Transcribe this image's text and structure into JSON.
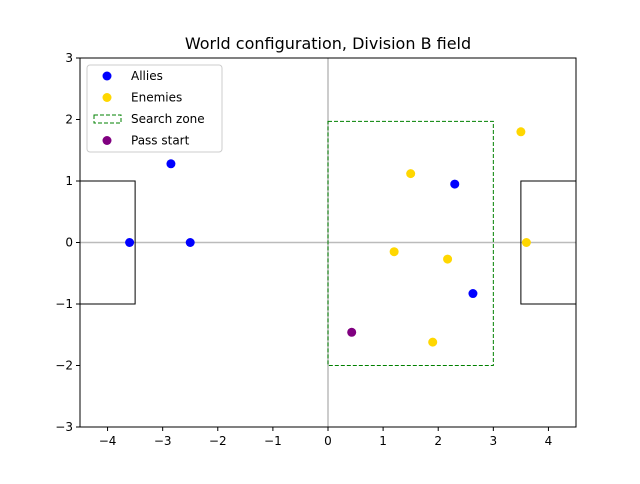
{
  "chart_data": {
    "type": "scatter",
    "title": "World configuration, Division B field",
    "xlabel": "",
    "ylabel": "",
    "xlim": [
      -4.5,
      4.5
    ],
    "ylim": [
      -3,
      3
    ],
    "xticks": [
      -4,
      -3,
      -2,
      -1,
      0,
      1,
      2,
      3,
      4
    ],
    "yticks": [
      -3,
      -2,
      -1,
      0,
      1,
      2,
      3
    ],
    "grid": false,
    "legend_position": "top-left",
    "series": [
      {
        "name": "Allies",
        "color": "#0000ff",
        "points": [
          {
            "x": -3.6,
            "y": 0.0
          },
          {
            "x": -2.5,
            "y": 0.0
          },
          {
            "x": -2.85,
            "y": 1.28
          },
          {
            "x": 2.3,
            "y": 0.95
          },
          {
            "x": 2.63,
            "y": -0.83
          }
        ]
      },
      {
        "name": "Enemies",
        "color": "#ffd700",
        "points": [
          {
            "x": 3.6,
            "y": 0.0
          },
          {
            "x": 3.5,
            "y": 1.8
          },
          {
            "x": 1.5,
            "y": 1.12
          },
          {
            "x": 1.2,
            "y": -0.15
          },
          {
            "x": 2.17,
            "y": -0.27
          },
          {
            "x": 1.9,
            "y": -1.62
          }
        ]
      },
      {
        "name": "Pass start",
        "color": "#800080",
        "points": [
          {
            "x": 0.43,
            "y": -1.46
          }
        ]
      }
    ],
    "search_zone": {
      "name": "Search zone",
      "color": "#008000",
      "x_range": [
        0,
        3
      ],
      "y_range": [
        -2,
        1.97
      ]
    },
    "goal_boxes": [
      {
        "x_range": [
          -4.5,
          -3.5
        ],
        "y_range": [
          -1,
          1
        ]
      },
      {
        "x_range": [
          3.5,
          4.5
        ],
        "y_range": [
          -1,
          1
        ]
      }
    ],
    "center_lines": {
      "x": 0,
      "y": 0,
      "color": "#bbbbbb"
    },
    "legend_order": [
      "Allies",
      "Enemies",
      "Search zone",
      "Pass start"
    ]
  }
}
